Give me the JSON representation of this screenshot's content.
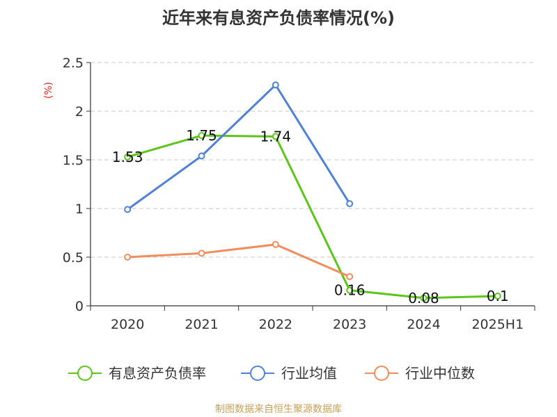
{
  "chart_data": {
    "type": "line",
    "title": "近年来有息资产负债率情况(%)",
    "ylabel": "(%)",
    "categories": [
      "2020",
      "2021",
      "2022",
      "2023",
      "2024",
      "2025H1"
    ],
    "ylim": [
      0,
      2.5
    ],
    "yticks": [
      "0",
      "0.5",
      "1",
      "1.5",
      "2",
      "2.5"
    ],
    "grid": true,
    "legend_position": "bottom",
    "series": [
      {
        "name": "有息资产负债率",
        "color": "#5bc51a",
        "values": [
          1.53,
          1.75,
          1.74,
          0.16,
          0.08,
          0.1
        ],
        "labels": [
          "1.53",
          "1.75",
          "1.74",
          "0.16",
          "0.08",
          "0.1"
        ]
      },
      {
        "name": "行业均值",
        "color": "#4f81d9",
        "values": [
          0.99,
          1.54,
          2.27,
          1.05,
          null,
          null
        ]
      },
      {
        "name": "行业中位数",
        "color": "#f28c5b",
        "values": [
          0.5,
          0.54,
          0.63,
          0.3,
          null,
          null
        ]
      }
    ]
  },
  "source": "制图数据来自恒生聚源数据库"
}
